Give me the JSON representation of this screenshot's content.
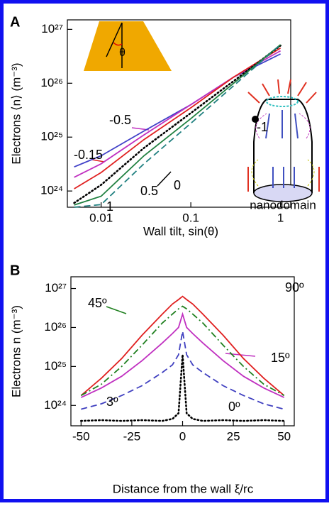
{
  "chart_data": [
    {
      "type": "line",
      "panel_label": "A",
      "xlabel": "Wall tilt, sin(θ)",
      "ylabel": "Electrons  ⟨n⟩  (m⁻³)",
      "xscale": "log",
      "yscale": "log",
      "xlim": [
        0.0042,
        1.3
      ],
      "ylim": [
        5e+23,
        1.5e+27
      ],
      "xticks": [
        0.01,
        0.1,
        1
      ],
      "yticks": [
        {
          "value": 1e+24,
          "label": "10²⁴"
        },
        {
          "value": 1e+25,
          "label": "10²⁵"
        },
        {
          "value": 1e+26,
          "label": "10²⁶"
        },
        {
          "value": 1e+27,
          "label": "10²⁷"
        }
      ],
      "x": [
        0.005,
        0.01,
        0.03,
        0.1,
        0.3,
        1
      ],
      "series": [
        {
          "name": "-1",
          "color": "#4040c8",
          "dash": "solid",
          "values": [
            2.8e+24,
            4.5e+24,
            1.3e+25,
            4e+25,
            1.3e+26,
            3.5e+26
          ]
        },
        {
          "name": "-0.5",
          "color": "#c030c0",
          "dash": "solid",
          "values": [
            1.8e+24,
            3.2e+24,
            1.1e+25,
            4e+25,
            1.3e+26,
            4e+26
          ]
        },
        {
          "name": "-0.15",
          "color": "#e02020",
          "dash": "solid",
          "values": [
            1.1e+24,
            2.2e+24,
            9e+24,
            3.5e+25,
            1.3e+26,
            4.5e+26
          ]
        },
        {
          "name": "0",
          "color": "#000000",
          "dash": "dotted",
          "values": [
            6e+23,
            1.3e+24,
            6.3e+24,
            2.8e+25,
            1.1e+26,
            5e+26
          ]
        },
        {
          "name": "0.5",
          "color": "#208040",
          "dash": "solid",
          "values": [
            5.5e+23,
            8e+23,
            4.5e+24,
            2.2e+25,
            1e+26,
            5.2e+26
          ]
        },
        {
          "name": "1",
          "color": "#208080",
          "dash": "dashed",
          "values": [
            5e+23,
            5.6e+23,
            3.2e+24,
            1.8e+25,
            9e+25,
            5.2e+26
          ]
        }
      ],
      "annotations": [
        "θ",
        "nanodomain"
      ]
    },
    {
      "type": "line",
      "panel_label": "B",
      "xlabel": "Distance from the wall  ξ/rc",
      "ylabel": "Electrons  n  (m⁻³)",
      "xscale": "linear",
      "yscale": "log",
      "xlim": [
        -55,
        55
      ],
      "ylim": [
        3e+23,
        2e+27
      ],
      "xticks": [
        -50,
        -25,
        0,
        25,
        50
      ],
      "yticks": [
        {
          "value": 1e+24,
          "label": "10²⁴"
        },
        {
          "value": 1e+25,
          "label": "10²⁵"
        },
        {
          "value": 1e+26,
          "label": "10²⁶"
        },
        {
          "value": 1e+27,
          "label": "10²⁷"
        }
      ],
      "x": [
        -50,
        -40,
        -30,
        -20,
        -10,
        -5,
        -2,
        0,
        2,
        5,
        10,
        20,
        30,
        40,
        50
      ],
      "series": [
        {
          "name": "90º",
          "color": "#e02020",
          "dash": "solid",
          "values": [
            1.8e+24,
            5e+24,
            1.6e+25,
            6.3e+25,
            2.2e+26,
            4e+26,
            5.2e+26,
            6.3e+26,
            5.2e+26,
            4e+26,
            2.2e+26,
            6.3e+25,
            1.6e+25,
            5e+24,
            1.8e+24
          ]
        },
        {
          "name": "45º",
          "color": "#208020",
          "dash": "dashdot",
          "values": [
            1.8e+24,
            3.5e+24,
            1e+25,
            3.5e+25,
            1.3e+26,
            2.2e+26,
            3e+26,
            3.5e+26,
            3e+26,
            2.2e+26,
            1.3e+26,
            3.5e+25,
            1e+25,
            3.5e+24,
            1.8e+24
          ]
        },
        {
          "name": "15º",
          "color": "#c030c0",
          "dash": "solid",
          "values": [
            1.6e+24,
            2.8e+24,
            5.6e+24,
            1.4e+25,
            4e+25,
            7e+25,
            1e+26,
            2.2e+26,
            1e+26,
            7e+25,
            4e+25,
            1.4e+25,
            5.6e+24,
            2.8e+24,
            1.6e+24
          ]
        },
        {
          "name": "3º",
          "color": "#4040c0",
          "dash": "dashed",
          "values": [
            8e+23,
            1.1e+24,
            1.8e+24,
            3.2e+24,
            7e+24,
            1.1e+25,
            2e+25,
            8e+25,
            2e+25,
            1.1e+25,
            7e+24,
            3.2e+24,
            1.8e+24,
            1.1e+24,
            8e+23
          ]
        },
        {
          "name": "0º",
          "color": "#000000",
          "dash": "dotted",
          "values": [
            4e+23,
            4.2e+23,
            4e+23,
            4.2e+23,
            4e+23,
            4.5e+23,
            6.3e+23,
            2e+25,
            6.3e+23,
            4.5e+23,
            4e+23,
            4.2e+23,
            4e+23,
            4.2e+23,
            4e+23
          ]
        }
      ]
    }
  ]
}
